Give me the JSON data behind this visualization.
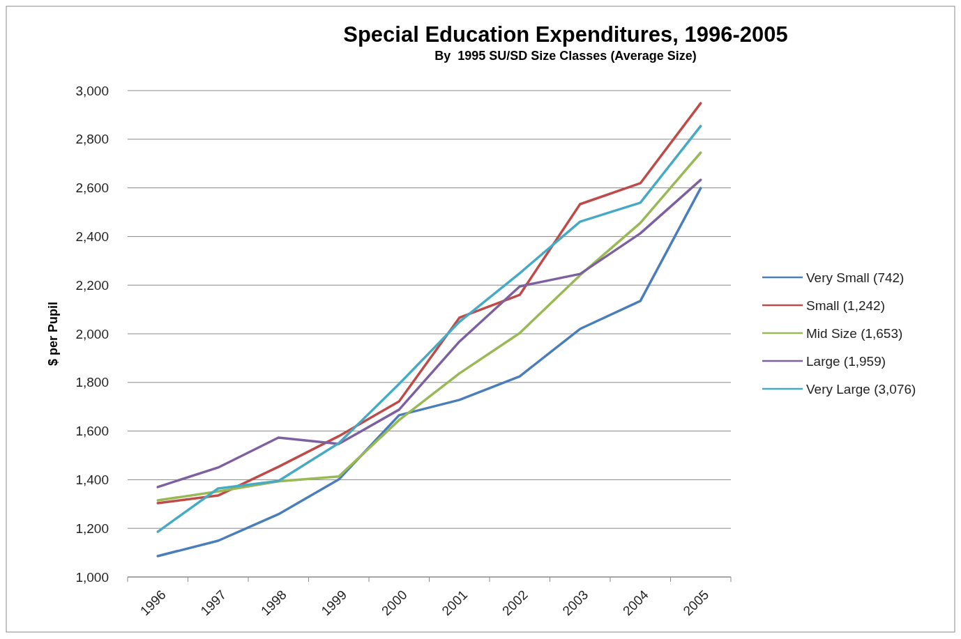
{
  "chart_data": {
    "type": "line",
    "title": "Special Education Expenditures, 1996-2005",
    "subtitle": "By  1995 SU/SD Size Classes (Average Size)",
    "ylabel": "$ per Pupil",
    "categories": [
      "1996",
      "1997",
      "1998",
      "1999",
      "2000",
      "2001",
      "2002",
      "2003",
      "2004",
      "2005"
    ],
    "series": [
      {
        "name": "Very Small (742)",
        "color": "#4a7ebb",
        "values": [
          1086,
          1149,
          1258,
          1401,
          1665,
          1728,
          1825,
          2020,
          2135,
          2599
        ]
      },
      {
        "name": "Small (1,242)",
        "color": "#be4b48",
        "values": [
          1304,
          1335,
          1453,
          1579,
          1722,
          2066,
          2160,
          2533,
          2619,
          2948
        ]
      },
      {
        "name": "Mid Size (1,653)",
        "color": "#98b954",
        "values": [
          1315,
          1352,
          1393,
          1413,
          1645,
          1837,
          2003,
          2241,
          2456,
          2745
        ]
      },
      {
        "name": "Large (1,959)",
        "color": "#7d60a0",
        "values": [
          1370,
          1450,
          1573,
          1547,
          1688,
          1968,
          2195,
          2246,
          2413,
          2633
        ]
      },
      {
        "name": "Very Large (3,076)",
        "color": "#46aac5",
        "values": [
          1186,
          1364,
          1395,
          1550,
          1794,
          2049,
          2249,
          2461,
          2539,
          2854
        ]
      }
    ],
    "ylim": [
      1000,
      3000
    ],
    "yticks": [
      {
        "value": 1000,
        "label": "1,000"
      },
      {
        "value": 1200,
        "label": "1,200"
      },
      {
        "value": 1400,
        "label": "1,400"
      },
      {
        "value": 1600,
        "label": "1,600"
      },
      {
        "value": 1800,
        "label": "1,800"
      },
      {
        "value": 2000,
        "label": "2,000"
      },
      {
        "value": 2200,
        "label": "2,200"
      },
      {
        "value": 2400,
        "label": "2,400"
      },
      {
        "value": 2600,
        "label": "2,600"
      },
      {
        "value": 2800,
        "label": "2,800"
      },
      {
        "value": 3000,
        "label": "3,000"
      }
    ],
    "grid": "y",
    "legend": "right",
    "marker": "none",
    "line_style": "solid"
  }
}
